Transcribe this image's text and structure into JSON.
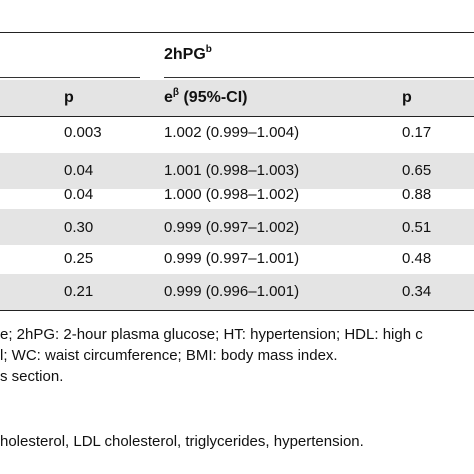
{
  "group_header": {
    "label": "2hPG",
    "sup": "b"
  },
  "columns": {
    "p_left": "p",
    "eb_label": "e",
    "eb_sup": "β",
    "eb_suffix": " (95%-CI)",
    "p_right": "p"
  },
  "rows": [
    {
      "p1": "0.003",
      "eb": "1.002 (0.999–1.004)",
      "p2": "0.17"
    },
    {
      "p1": "0.04",
      "eb": "1.001 (0.998–1.003)",
      "p2": "0.65"
    },
    {
      "p1": "0.04",
      "eb": "1.000 (0.998–1.002)",
      "p2": "0.88"
    },
    {
      "p1": "0.30",
      "eb": "0.999 (0.997–1.002)",
      "p2": "0.51"
    },
    {
      "p1": "0.25",
      "eb": "0.999 (0.997–1.001)",
      "p2": "0.48"
    },
    {
      "p1": "0.21",
      "eb": "0.999 (0.996–1.001)",
      "p2": "0.34"
    }
  ],
  "footnotes": [
    "e; 2hPG: 2-hour plasma glucose; HT: hypertension; HDL: high c",
    "l; WC: waist circumference; BMI: body mass index.",
    "s section.",
    "holesterol, LDL cholesterol, triglycerides, hypertension."
  ],
  "colors": {
    "shade": "#e4e4e4",
    "rule": "#222222"
  }
}
